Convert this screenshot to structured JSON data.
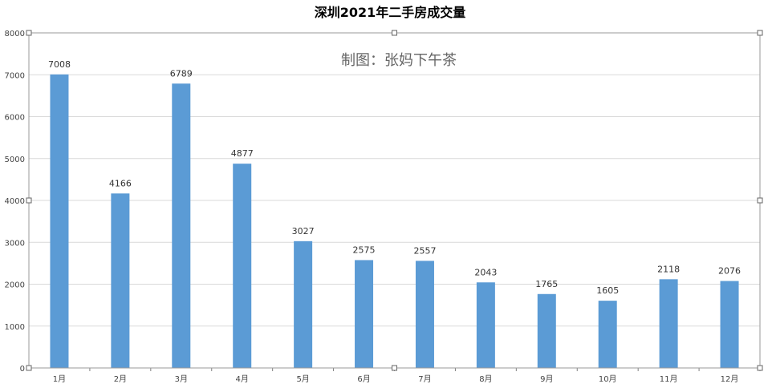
{
  "chart_data": {
    "type": "bar",
    "title": "深圳2021年二手房成交量",
    "watermark": "制图：张妈下午茶",
    "xlabel": "",
    "ylabel": "",
    "categories": [
      "1月",
      "2月",
      "3月",
      "4月",
      "5月",
      "6月",
      "7月",
      "8月",
      "9月",
      "10月",
      "11月",
      "12月"
    ],
    "values": [
      7008,
      4166,
      6789,
      4877,
      3027,
      2575,
      2557,
      2043,
      1765,
      1605,
      2118,
      2076
    ],
    "ylim": [
      0,
      8000
    ],
    "yticks": [
      0,
      1000,
      2000,
      3000,
      4000,
      5000,
      6000,
      7000,
      8000
    ],
    "grid": true,
    "legend": "none",
    "bar_color": "#5b9bd5"
  }
}
